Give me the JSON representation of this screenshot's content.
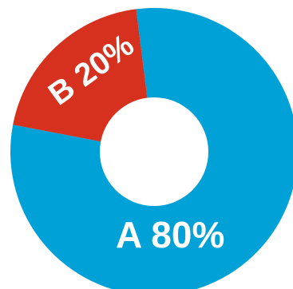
{
  "chart_data": {
    "type": "pie",
    "style": "donut",
    "title": "",
    "slices": [
      {
        "label": "A 80%",
        "category": "A",
        "value": 80,
        "color": "#00a1d6"
      },
      {
        "label": "B 20%",
        "category": "B",
        "value": 20,
        "color": "#d6301f"
      }
    ],
    "background": "#ffffff"
  }
}
